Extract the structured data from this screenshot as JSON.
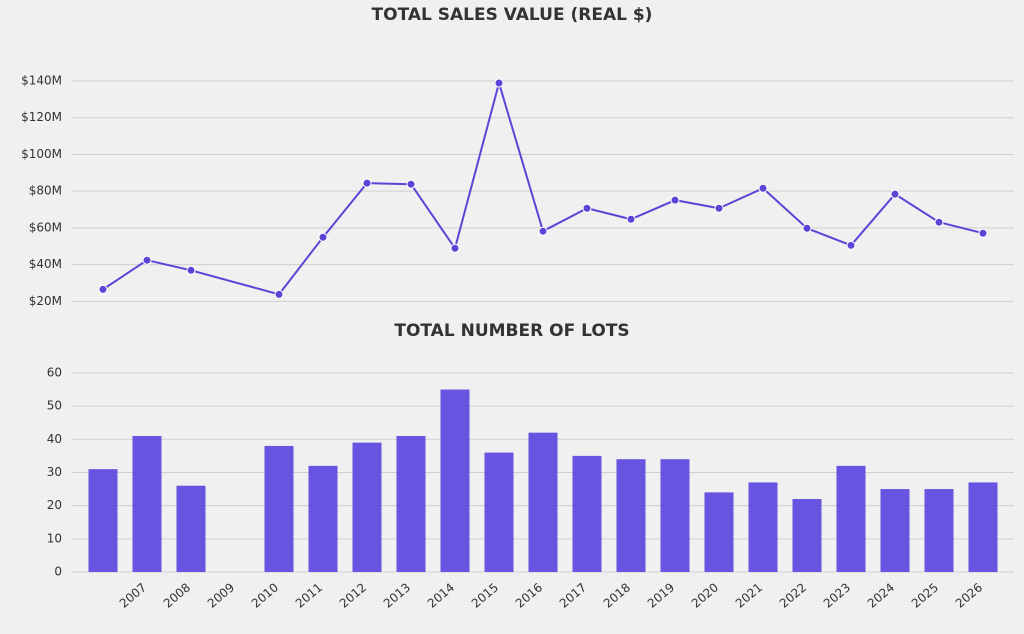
{
  "chart_data": [
    {
      "type": "line",
      "title": "TOTAL SALES VALUE (REAL $)",
      "color": "#5a45d6",
      "values": [
        26.5,
        42.4,
        36.9,
        null,
        23.8,
        54.9,
        84.4,
        83.8,
        48.9,
        138.9,
        58.2,
        70.7,
        64.7,
        75.1,
        70.7,
        81.6,
        59.8,
        50.5,
        78.4,
        63.1,
        57.1
      ],
      "ylim": [
        18,
        146
      ],
      "yticks": [
        {
          "value": 20,
          "label": "$20M"
        },
        {
          "value": 40,
          "label": "$40M"
        },
        {
          "value": 60,
          "label": "$60M"
        },
        {
          "value": 80,
          "label": "$80M"
        },
        {
          "value": 100,
          "label": "$100M"
        },
        {
          "value": 120,
          "label": "$120M"
        },
        {
          "value": 140,
          "label": "$140M"
        }
      ],
      "grid": true
    },
    {
      "type": "bar",
      "title": "TOTAL NUMBER OF LOTS",
      "color": "#5b48e0",
      "categories": [
        null,
        "2007",
        "2008",
        "2009",
        "2010",
        "2011",
        "2012",
        "2013",
        "2014",
        "2015",
        "2016",
        "2017",
        "2018",
        "2019",
        "2020",
        "2021",
        "2022",
        "2023",
        "2024",
        "2025",
        "2026"
      ],
      "values": [
        31,
        41,
        26,
        null,
        38,
        32,
        39,
        41,
        55,
        36,
        42,
        35,
        34,
        34,
        24,
        27,
        22,
        32,
        25,
        25,
        27
      ],
      "ylim": [
        0,
        63
      ],
      "yticks": [
        0,
        10,
        20,
        30,
        40,
        50,
        60
      ],
      "grid": true
    }
  ]
}
